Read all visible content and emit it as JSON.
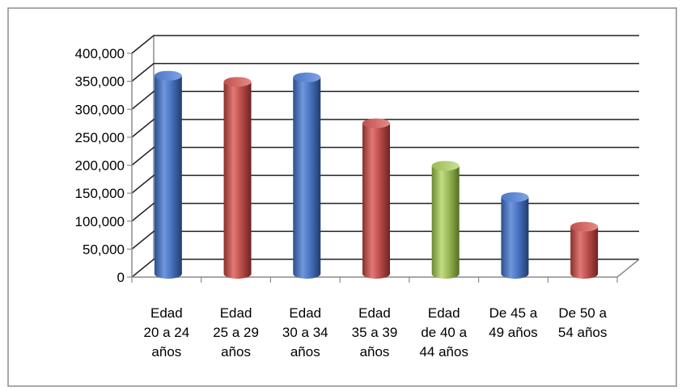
{
  "chart_data": {
    "type": "bar",
    "title": "",
    "xlabel": "",
    "ylabel": "",
    "categories": [
      [
        "Edad",
        "20 a 24",
        "años"
      ],
      [
        "Edad",
        "25 a 29",
        "años"
      ],
      [
        "Edad",
        "30 a 34",
        "años"
      ],
      [
        "Edad",
        "35 a 39",
        "años"
      ],
      [
        "Edad",
        "de 40 a",
        "44 años"
      ],
      [
        "De 45 a",
        "49 años"
      ],
      [
        "De 50 a",
        "54 años"
      ]
    ],
    "values": [
      360000,
      349000,
      357000,
      275000,
      199000,
      143000,
      90000
    ],
    "bar_colors": [
      "#4472c4",
      "#c0504d",
      "#4472c4",
      "#c0504d",
      "#9bbb59",
      "#4472c4",
      "#c0504d"
    ],
    "ylim": [
      0,
      400000
    ],
    "yticks": [
      "0",
      "50,000",
      "100,000",
      "150,000",
      "200,000",
      "250,000",
      "300,000",
      "350,000",
      "400,000"
    ],
    "grid": true,
    "legend": "none",
    "style": "3d-cylinder"
  }
}
